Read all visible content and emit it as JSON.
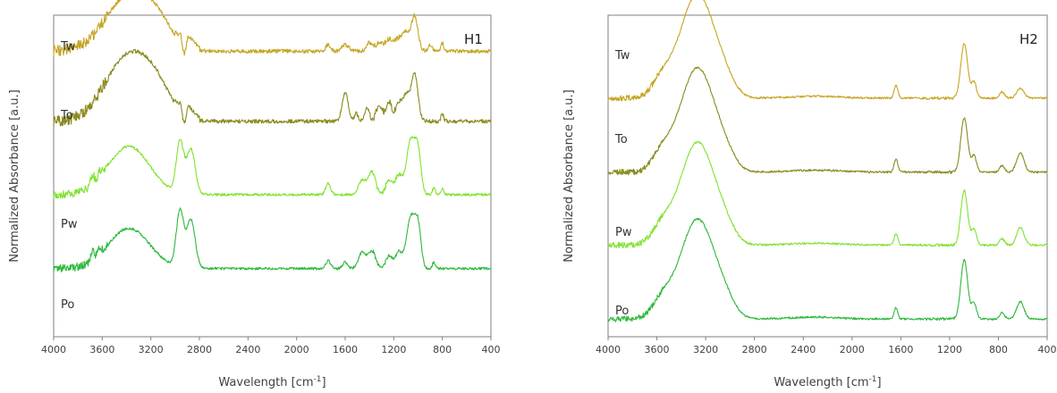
{
  "chart_data": [
    {
      "type": "line",
      "panel_label": "H1",
      "xlabel": "Wavelength [cm",
      "xlabel_sup": "-1",
      "xlabel_end": "]",
      "ylabel": "Normalized Absorbance [a.u.]",
      "xlim": [
        4000,
        400
      ],
      "x_reversed": true,
      "xticks": [
        4000,
        3600,
        3200,
        2800,
        2400,
        2000,
        1600,
        1200,
        800,
        400
      ],
      "grid": false,
      "series": [
        {
          "name": "Tw",
          "color": "#C5A524",
          "baseline": 0.888,
          "noise": 0.006,
          "peaks": [
            [
              3650,
              0.0,
              40
            ],
            [
              3380,
              0.17,
              190
            ],
            [
              3150,
              0.06,
              120
            ],
            [
              1740,
              0.02,
              20
            ],
            [
              1600,
              0.02,
              30
            ],
            [
              1400,
              0.028,
              25
            ],
            [
              1320,
              0.03,
              25
            ],
            [
              1240,
              0.038,
              30
            ],
            [
              1160,
              0.04,
              30
            ],
            [
              1100,
              0.055,
              25
            ],
            [
              1030,
              0.11,
              28
            ],
            [
              900,
              0.02,
              15
            ],
            [
              800,
              0.025,
              12
            ]
          ],
          "extras": [
            [
              3000,
              2800,
              0.035
            ],
            [
              2950,
              2900,
              -0.06
            ]
          ]
        },
        {
          "name": "To",
          "color": "#8A8A1E",
          "baseline": 0.67,
          "noise": 0.006,
          "peaks": [
            [
              3380,
              0.205,
              190
            ],
            [
              3150,
              0.06,
              120
            ],
            [
              1600,
              0.09,
              25
            ],
            [
              1510,
              0.025,
              15
            ],
            [
              1420,
              0.04,
              20
            ],
            [
              1320,
              0.05,
              25
            ],
            [
              1240,
              0.06,
              25
            ],
            [
              1160,
              0.06,
              25
            ],
            [
              1100,
              0.08,
              25
            ],
            [
              1030,
              0.15,
              28
            ],
            [
              800,
              0.02,
              12
            ]
          ],
          "extras": [
            [
              3000,
              2800,
              0.035
            ],
            [
              2950,
              2900,
              -0.06
            ]
          ]
        },
        {
          "name": "Pw",
          "color": "#7FE22F",
          "baseline": 0.442,
          "noise": 0.004,
          "peaks": [
            [
              3680,
              0.03,
              15
            ],
            [
              3620,
              0.02,
              15
            ],
            [
              3380,
              0.15,
              170
            ],
            [
              2960,
              0.16,
              30
            ],
            [
              2870,
              0.14,
              35
            ],
            [
              1740,
              0.035,
              20
            ],
            [
              1460,
              0.045,
              30
            ],
            [
              1380,
              0.07,
              30
            ],
            [
              1240,
              0.045,
              25
            ],
            [
              1160,
              0.06,
              30
            ],
            [
              1060,
              0.17,
              35
            ],
            [
              1000,
              0.12,
              25
            ],
            [
              870,
              0.02,
              12
            ],
            [
              800,
              0.02,
              10
            ]
          ],
          "extras": []
        },
        {
          "name": "Po",
          "color": "#2EB83D",
          "baseline": 0.212,
          "noise": 0.004,
          "peaks": [
            [
              3680,
              0.03,
              15
            ],
            [
              3620,
              0.02,
              15
            ],
            [
              3380,
              0.125,
              170
            ],
            [
              2960,
              0.175,
              30
            ],
            [
              2870,
              0.15,
              35
            ],
            [
              1740,
              0.025,
              20
            ],
            [
              1600,
              0.02,
              20
            ],
            [
              1460,
              0.05,
              30
            ],
            [
              1380,
              0.055,
              30
            ],
            [
              1240,
              0.04,
              25
            ],
            [
              1160,
              0.05,
              30
            ],
            [
              1060,
              0.16,
              35
            ],
            [
              1000,
              0.12,
              25
            ],
            [
              870,
              0.02,
              12
            ]
          ],
          "extras": []
        }
      ]
    },
    {
      "type": "line",
      "panel_label": "H2",
      "xlabel": "Wavelength [cm",
      "xlabel_sup": "-1",
      "xlabel_end": "]",
      "ylabel": "Normalized Absorbance [a.u.]",
      "xlim": [
        4000,
        400
      ],
      "x_reversed": true,
      "xticks": [
        4000,
        3600,
        3200,
        2800,
        2400,
        2000,
        1600,
        1200,
        800,
        400
      ],
      "grid": false,
      "series": [
        {
          "name": "Tw",
          "color": "#C5A524",
          "baseline": 0.742,
          "noise": 0.003,
          "peaks": [
            [
              3560,
              0.05,
              80
            ],
            [
              3330,
              0.18,
              130
            ],
            [
              3220,
              0.175,
              120
            ],
            [
              3050,
              0.05,
              90
            ],
            [
              2300,
              0.006,
              200
            ],
            [
              1640,
              0.04,
              15
            ],
            [
              1080,
              0.17,
              28
            ],
            [
              1000,
              0.05,
              20
            ],
            [
              770,
              0.02,
              20
            ],
            [
              620,
              0.03,
              30
            ]
          ],
          "extras": []
        },
        {
          "name": "To",
          "color": "#8A8A1E",
          "baseline": 0.512,
          "noise": 0.003,
          "peaks": [
            [
              3560,
              0.05,
              80
            ],
            [
              3330,
              0.18,
              130
            ],
            [
              3220,
              0.175,
              120
            ],
            [
              3050,
              0.05,
              90
            ],
            [
              2300,
              0.006,
              200
            ],
            [
              1640,
              0.04,
              15
            ],
            [
              1080,
              0.17,
              28
            ],
            [
              1000,
              0.05,
              20
            ],
            [
              770,
              0.02,
              20
            ],
            [
              620,
              0.06,
              30
            ]
          ],
          "extras": []
        },
        {
          "name": "Pw",
          "color": "#7FE22F",
          "baseline": 0.285,
          "noise": 0.003,
          "peaks": [
            [
              3560,
              0.05,
              80
            ],
            [
              3330,
              0.175,
              130
            ],
            [
              3220,
              0.175,
              120
            ],
            [
              3050,
              0.05,
              90
            ],
            [
              2300,
              0.006,
              200
            ],
            [
              1640,
              0.035,
              15
            ],
            [
              1080,
              0.17,
              28
            ],
            [
              1000,
              0.05,
              20
            ],
            [
              770,
              0.02,
              20
            ],
            [
              620,
              0.055,
              30
            ]
          ],
          "extras": []
        },
        {
          "name": "Po",
          "color": "#2EB83D",
          "baseline": 0.055,
          "noise": 0.003,
          "peaks": [
            [
              3560,
              0.05,
              80
            ],
            [
              3330,
              0.17,
              130
            ],
            [
              3220,
              0.17,
              120
            ],
            [
              3050,
              0.05,
              90
            ],
            [
              2300,
              0.006,
              200
            ],
            [
              1640,
              0.035,
              15
            ],
            [
              1080,
              0.185,
              28
            ],
            [
              1000,
              0.05,
              20
            ],
            [
              770,
              0.02,
              20
            ],
            [
              620,
              0.055,
              30
            ]
          ],
          "extras": []
        }
      ]
    }
  ]
}
